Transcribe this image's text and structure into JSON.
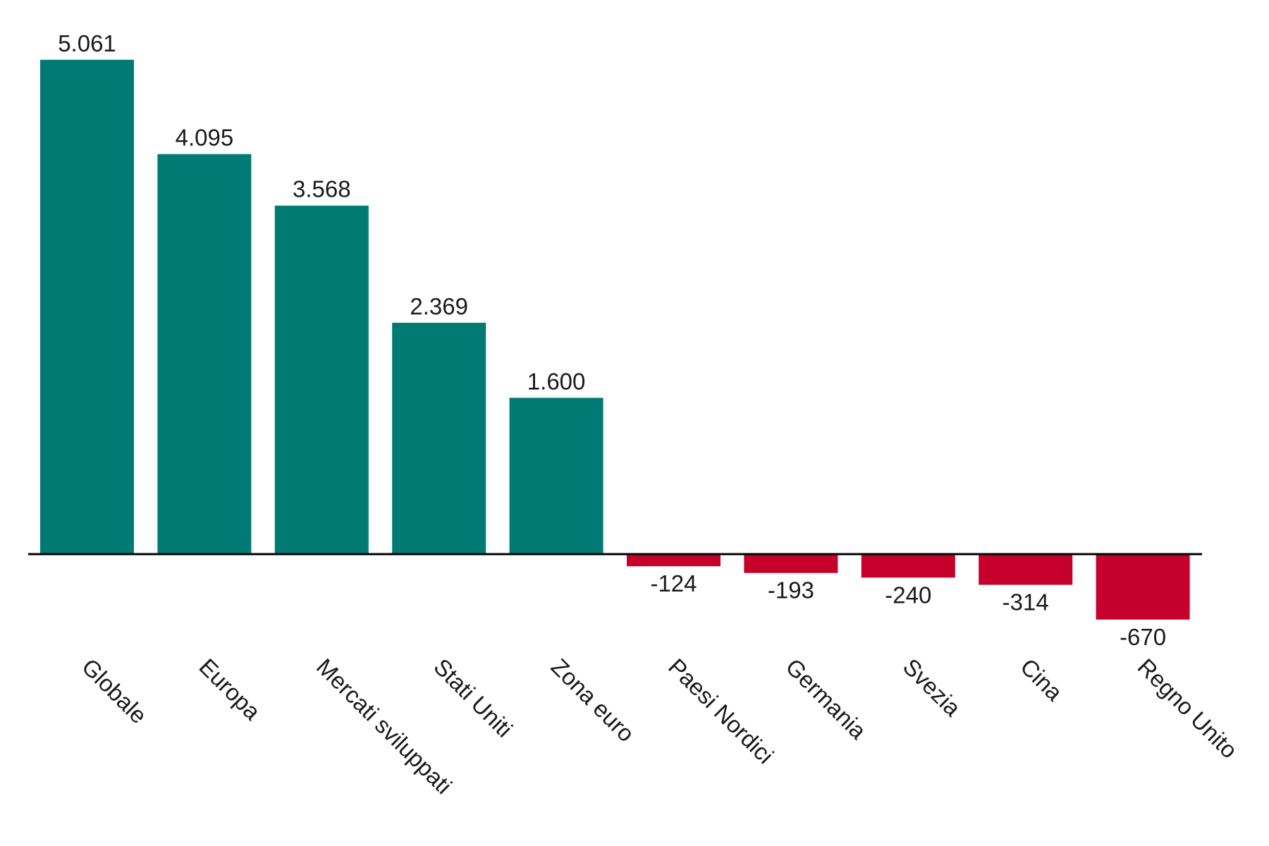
{
  "chart_data": {
    "type": "bar",
    "title": "",
    "xlabel": "",
    "ylabel": "",
    "categories": [
      "Globale",
      "Europa",
      "Mercati sviluppati",
      "Stati Uniti",
      "Zona euro",
      "Paesi Nordici",
      "Germania",
      "Svezia",
      "Cina",
      "Regno Unito"
    ],
    "values": [
      5061,
      4095,
      3568,
      2369,
      1600,
      -124,
      -193,
      -240,
      -314,
      -670
    ],
    "value_labels": [
      "5.061",
      "4.095",
      "3.568",
      "2.369",
      "1.600",
      "-124",
      "-193",
      "-240",
      "-314",
      "-670"
    ],
    "ylim": [
      -670,
      5061
    ],
    "grid": false,
    "legend": "none",
    "colors": {
      "positive": "#007a73",
      "negative": "#c4002b",
      "axis": "#000000",
      "text": "#1a1a1a"
    }
  }
}
